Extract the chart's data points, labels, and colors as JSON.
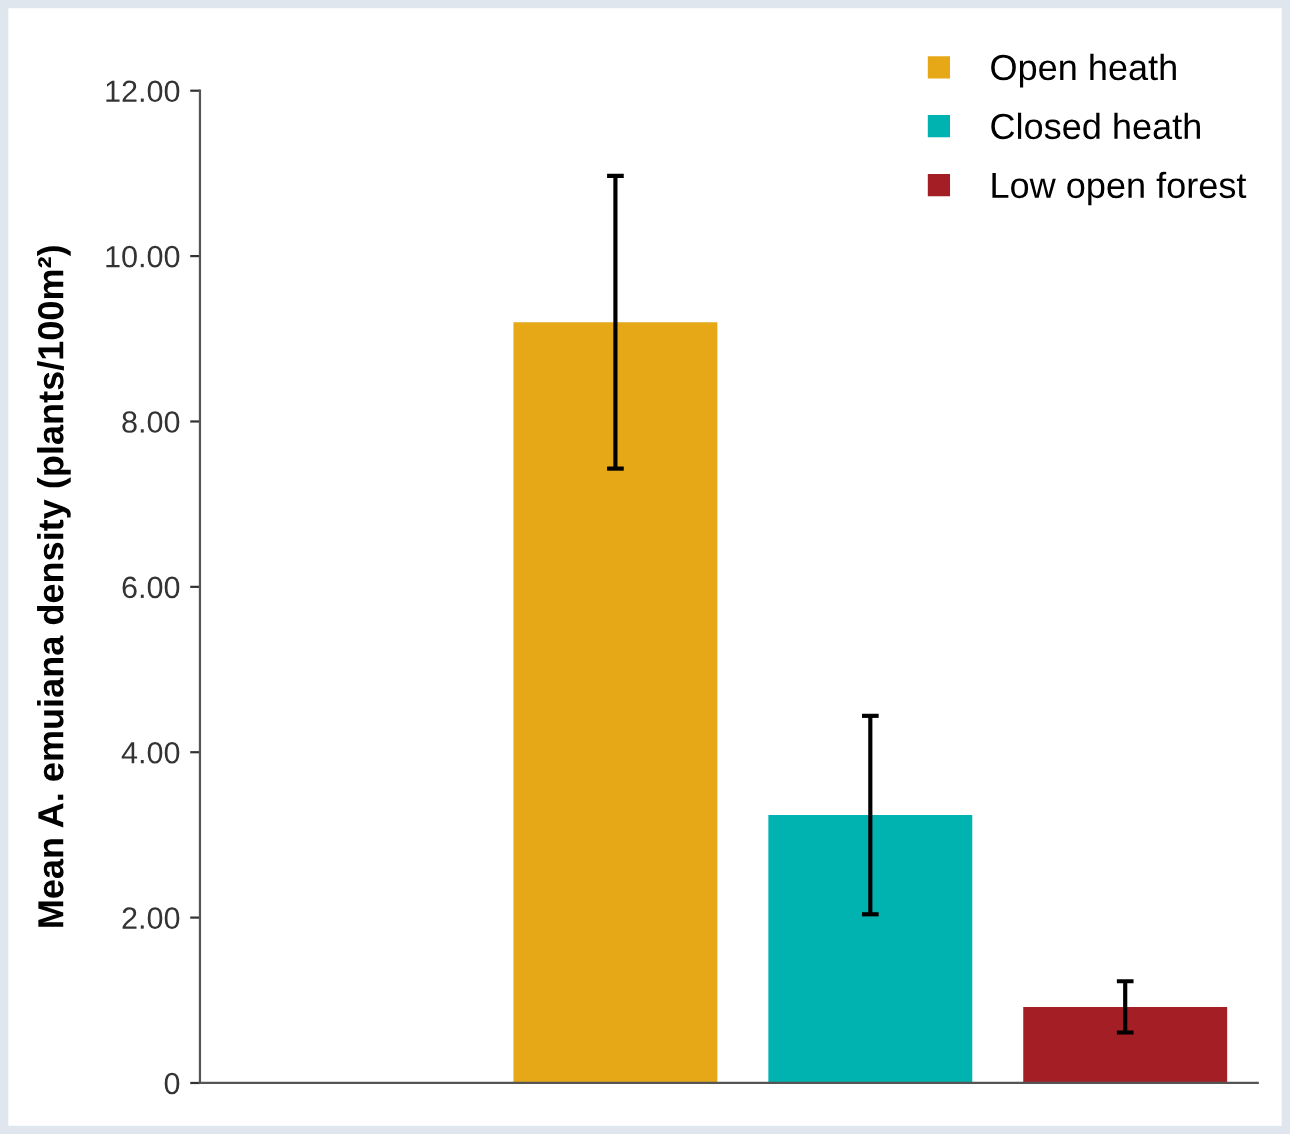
{
  "chart_data": {
    "type": "bar",
    "ylabel": "Mean A. emuiana density (plants/100m²)",
    "categories": [
      null,
      null,
      null,
      null
    ],
    "series": [
      {
        "name": "Open heath",
        "color": "#e6a817",
        "values": [
          null,
          9.2,
          null,
          null
        ],
        "errors": [
          null,
          1.77,
          null,
          null
        ]
      },
      {
        "name": "Closed heath",
        "color": "#00b2b0",
        "values": [
          null,
          null,
          3.24,
          null
        ],
        "errors": [
          null,
          null,
          1.2,
          null
        ]
      },
      {
        "name": "Low open forest",
        "color": "#a31f25",
        "values": [
          null,
          null,
          null,
          0.92
        ],
        "errors": [
          null,
          null,
          null,
          0.31
        ]
      }
    ],
    "ylim": [
      0,
      12
    ],
    "yticks": [
      {
        "value": 0,
        "label": "0"
      },
      {
        "value": 2,
        "label": "2.00"
      },
      {
        "value": 4,
        "label": "4.00"
      },
      {
        "value": 6,
        "label": "6.00"
      },
      {
        "value": 8,
        "label": "8.00"
      },
      {
        "value": 10,
        "label": "10.00"
      },
      {
        "value": 12,
        "label": "12.00"
      }
    ],
    "grid": false,
    "legend": "top right"
  }
}
